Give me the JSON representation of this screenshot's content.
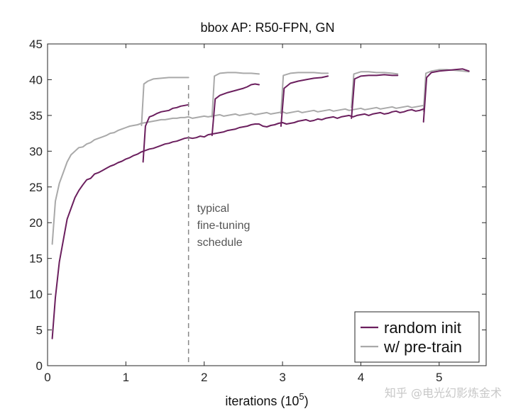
{
  "chart_data": {
    "type": "line",
    "title": "bbox AP: R50-FPN, GN",
    "xlabel": "iterations (10",
    "xlabel_exp": "5",
    "xlabel_close": ")",
    "ylabel": "",
    "xlim": [
      0,
      5.6
    ],
    "ylim": [
      0,
      45
    ],
    "xticks": [
      0,
      1,
      2,
      3,
      4,
      5
    ],
    "xtick_labels": [
      "0",
      "1",
      "2",
      "3",
      "4",
      "5"
    ],
    "yticks": [
      0,
      5,
      10,
      15,
      20,
      25,
      30,
      35,
      40,
      45
    ],
    "ytick_labels": [
      "0",
      "5",
      "10",
      "15",
      "20",
      "25",
      "30",
      "35",
      "40",
      "45"
    ],
    "grid": false,
    "legend_position": "bottom-right",
    "annotation": {
      "lines": [
        "typical",
        "fine-tuning",
        "schedule"
      ],
      "x_at": 1.8,
      "style": "dashed vertical line"
    },
    "series": [
      {
        "name": "random init",
        "color": "#6b1f5e",
        "role": "training curve",
        "points": [
          [
            0.06,
            3.8
          ],
          [
            0.1,
            9.5
          ],
          [
            0.15,
            14.5
          ],
          [
            0.2,
            17.5
          ],
          [
            0.25,
            20.5
          ],
          [
            0.3,
            22
          ],
          [
            0.35,
            23.5
          ],
          [
            0.4,
            24.5
          ],
          [
            0.45,
            25.3
          ],
          [
            0.5,
            26
          ],
          [
            0.55,
            26.2
          ],
          [
            0.6,
            26.8
          ],
          [
            0.65,
            27
          ],
          [
            0.7,
            27.3
          ],
          [
            0.75,
            27.6
          ],
          [
            0.8,
            27.9
          ],
          [
            0.85,
            28.1
          ],
          [
            0.9,
            28.4
          ],
          [
            0.95,
            28.6
          ],
          [
            1.0,
            28.9
          ],
          [
            1.05,
            29.1
          ],
          [
            1.1,
            29.4
          ],
          [
            1.15,
            29.6
          ],
          [
            1.2,
            29.9
          ],
          [
            1.25,
            30.1
          ],
          [
            1.3,
            30.3
          ],
          [
            1.35,
            30.4
          ],
          [
            1.4,
            30.6
          ],
          [
            1.45,
            30.8
          ],
          [
            1.5,
            31
          ],
          [
            1.55,
            31.1
          ],
          [
            1.6,
            31.3
          ],
          [
            1.65,
            31.4
          ],
          [
            1.7,
            31.6
          ],
          [
            1.75,
            31.8
          ],
          [
            1.8,
            31.9
          ],
          [
            1.85,
            31.8
          ],
          [
            1.9,
            31.9
          ],
          [
            1.95,
            32.1
          ],
          [
            2.0,
            32
          ],
          [
            2.05,
            32.3
          ],
          [
            2.1,
            32.4
          ],
          [
            2.15,
            32.5
          ],
          [
            2.2,
            32.6
          ],
          [
            2.25,
            32.7
          ],
          [
            2.3,
            32.9
          ],
          [
            2.35,
            33
          ],
          [
            2.4,
            33.1
          ],
          [
            2.45,
            33.3
          ],
          [
            2.5,
            33.4
          ],
          [
            2.55,
            33.5
          ],
          [
            2.6,
            33.7
          ],
          [
            2.65,
            33.8
          ],
          [
            2.7,
            33.8
          ],
          [
            2.75,
            33.5
          ],
          [
            2.8,
            33.4
          ],
          [
            2.85,
            33.6
          ],
          [
            2.9,
            33.7
          ],
          [
            2.95,
            33.9
          ],
          [
            3.0,
            34
          ],
          [
            3.05,
            33.8
          ],
          [
            3.1,
            33.9
          ],
          [
            3.15,
            34
          ],
          [
            3.2,
            34.2
          ],
          [
            3.25,
            34.3
          ],
          [
            3.3,
            34.4
          ],
          [
            3.35,
            34.2
          ],
          [
            3.4,
            34.3
          ],
          [
            3.45,
            34.5
          ],
          [
            3.5,
            34.4
          ],
          [
            3.55,
            34.6
          ],
          [
            3.6,
            34.7
          ],
          [
            3.65,
            34.8
          ],
          [
            3.7,
            34.6
          ],
          [
            3.75,
            34.8
          ],
          [
            3.8,
            34.9
          ],
          [
            3.85,
            35
          ],
          [
            3.9,
            34.8
          ],
          [
            3.95,
            35
          ],
          [
            4.0,
            35.1
          ],
          [
            4.05,
            35.2
          ],
          [
            4.1,
            35
          ],
          [
            4.15,
            35.2
          ],
          [
            4.2,
            35.3
          ],
          [
            4.25,
            35.4
          ],
          [
            4.3,
            35.2
          ],
          [
            4.35,
            35.3
          ],
          [
            4.4,
            35.5
          ],
          [
            4.45,
            35.6
          ],
          [
            4.5,
            35.4
          ],
          [
            4.55,
            35.5
          ],
          [
            4.6,
            35.7
          ],
          [
            4.65,
            35.8
          ],
          [
            4.7,
            35.6
          ],
          [
            4.75,
            35.7
          ],
          [
            4.8,
            35.9
          ]
        ]
      },
      {
        "name": "w/ pre-train",
        "color": "#a9a9a9",
        "role": "training curve",
        "points": [
          [
            0.06,
            17
          ],
          [
            0.1,
            23
          ],
          [
            0.15,
            25.5
          ],
          [
            0.2,
            27
          ],
          [
            0.25,
            28.5
          ],
          [
            0.3,
            29.5
          ],
          [
            0.35,
            30
          ],
          [
            0.4,
            30.5
          ],
          [
            0.45,
            30.6
          ],
          [
            0.5,
            31
          ],
          [
            0.55,
            31.2
          ],
          [
            0.6,
            31.6
          ],
          [
            0.65,
            31.8
          ],
          [
            0.7,
            32
          ],
          [
            0.75,
            32.2
          ],
          [
            0.8,
            32.5
          ],
          [
            0.85,
            32.6
          ],
          [
            0.9,
            32.9
          ],
          [
            0.95,
            33.1
          ],
          [
            1.0,
            33.3
          ],
          [
            1.05,
            33.5
          ],
          [
            1.1,
            33.6
          ],
          [
            1.15,
            33.7
          ],
          [
            1.2,
            33.9
          ],
          [
            1.25,
            34
          ],
          [
            1.3,
            34.1
          ],
          [
            1.35,
            34.2
          ],
          [
            1.4,
            34.3
          ],
          [
            1.45,
            34.4
          ],
          [
            1.5,
            34.4
          ],
          [
            1.55,
            34.5
          ],
          [
            1.6,
            34.6
          ],
          [
            1.65,
            34.6
          ],
          [
            1.7,
            34.7
          ],
          [
            1.75,
            34.7
          ],
          [
            1.8,
            34.8
          ],
          [
            1.85,
            34.6
          ],
          [
            1.9,
            34.7
          ],
          [
            1.95,
            34.8
          ],
          [
            2.0,
            34.9
          ],
          [
            2.05,
            34.8
          ],
          [
            2.1,
            34.9
          ],
          [
            2.15,
            35
          ],
          [
            2.2,
            35.1
          ],
          [
            2.25,
            34.9
          ],
          [
            2.3,
            35
          ],
          [
            2.35,
            35.1
          ],
          [
            2.4,
            35.2
          ],
          [
            2.45,
            35
          ],
          [
            2.5,
            35.1
          ],
          [
            2.55,
            35.2
          ],
          [
            2.6,
            35.3
          ],
          [
            2.65,
            35.1
          ],
          [
            2.7,
            35.2
          ],
          [
            2.75,
            35.3
          ],
          [
            2.8,
            35.4
          ],
          [
            2.85,
            35.2
          ],
          [
            2.9,
            35.3
          ],
          [
            2.95,
            35.4
          ],
          [
            3.0,
            35.5
          ],
          [
            3.05,
            35.3
          ],
          [
            3.1,
            35.4
          ],
          [
            3.15,
            35.5
          ],
          [
            3.2,
            35.6
          ],
          [
            3.25,
            35.4
          ],
          [
            3.3,
            35.5
          ],
          [
            3.35,
            35.6
          ],
          [
            3.4,
            35.7
          ],
          [
            3.45,
            35.5
          ],
          [
            3.5,
            35.6
          ],
          [
            3.55,
            35.7
          ],
          [
            3.6,
            35.8
          ],
          [
            3.65,
            35.6
          ],
          [
            3.7,
            35.7
          ],
          [
            3.75,
            35.8
          ],
          [
            3.8,
            35.9
          ],
          [
            3.85,
            35.7
          ],
          [
            3.9,
            35.8
          ],
          [
            3.95,
            35.9
          ],
          [
            4.0,
            36
          ],
          [
            4.05,
            35.8
          ],
          [
            4.1,
            35.9
          ],
          [
            4.15,
            36
          ],
          [
            4.2,
            36.1
          ],
          [
            4.25,
            35.9
          ],
          [
            4.3,
            36
          ],
          [
            4.35,
            36.1
          ],
          [
            4.4,
            36.2
          ],
          [
            4.45,
            36
          ],
          [
            4.5,
            36.1
          ],
          [
            4.55,
            36.2
          ],
          [
            4.6,
            36.3
          ],
          [
            4.65,
            36.1
          ],
          [
            4.7,
            36.2
          ],
          [
            4.75,
            36.3
          ],
          [
            4.8,
            36.4
          ]
        ]
      },
      {
        "name": "random init (fine-tuned branches)",
        "color": "#6b1f5e",
        "role": "lr-drop branches",
        "branches": [
          [
            [
              1.22,
              28.5
            ],
            [
              1.25,
              33.5
            ],
            [
              1.3,
              34.8
            ],
            [
              1.35,
              35
            ],
            [
              1.4,
              35.3
            ],
            [
              1.45,
              35.5
            ],
            [
              1.5,
              35.6
            ],
            [
              1.55,
              35.7
            ],
            [
              1.6,
              36
            ],
            [
              1.65,
              36.1
            ],
            [
              1.7,
              36.3
            ],
            [
              1.75,
              36.4
            ],
            [
              1.8,
              36.5
            ]
          ],
          [
            [
              2.1,
              32.2
            ],
            [
              2.14,
              37.3
            ],
            [
              2.2,
              37.8
            ],
            [
              2.3,
              38.2
            ],
            [
              2.4,
              38.5
            ],
            [
              2.5,
              38.8
            ],
            [
              2.55,
              39
            ],
            [
              2.6,
              39.3
            ],
            [
              2.65,
              39.4
            ],
            [
              2.7,
              39.3
            ]
          ],
          [
            [
              2.98,
              33.5
            ],
            [
              3.02,
              38.8
            ],
            [
              3.1,
              39.5
            ],
            [
              3.2,
              39.8
            ],
            [
              3.3,
              40
            ],
            [
              3.4,
              40.2
            ],
            [
              3.5,
              40.3
            ],
            [
              3.58,
              40.5
            ]
          ],
          [
            [
              3.88,
              34.6
            ],
            [
              3.92,
              40.1
            ],
            [
              4.0,
              40.5
            ],
            [
              4.1,
              40.6
            ],
            [
              4.2,
              40.6
            ],
            [
              4.3,
              40.7
            ],
            [
              4.4,
              40.6
            ],
            [
              4.47,
              40.6
            ]
          ],
          [
            [
              4.8,
              34.1
            ],
            [
              4.84,
              40.3
            ],
            [
              4.9,
              41
            ],
            [
              5.0,
              41.2
            ],
            [
              5.1,
              41.3
            ],
            [
              5.2,
              41.4
            ],
            [
              5.3,
              41.5
            ],
            [
              5.38,
              41.2
            ]
          ]
        ]
      },
      {
        "name": "w/ pre-train (fine-tuned branches)",
        "color": "#a9a9a9",
        "role": "lr-drop branches",
        "branches": [
          [
            [
              1.2,
              33.6
            ],
            [
              1.23,
              39.4
            ],
            [
              1.28,
              39.8
            ],
            [
              1.35,
              40.1
            ],
            [
              1.45,
              40.2
            ],
            [
              1.55,
              40.3
            ],
            [
              1.65,
              40.3
            ],
            [
              1.8,
              40.3
            ]
          ],
          [
            [
              2.1,
              34.8
            ],
            [
              2.13,
              40.5
            ],
            [
              2.2,
              40.9
            ],
            [
              2.3,
              41
            ],
            [
              2.4,
              41
            ],
            [
              2.5,
              40.9
            ],
            [
              2.6,
              40.9
            ],
            [
              2.7,
              40.8
            ]
          ],
          [
            [
              2.98,
              35.3
            ],
            [
              3.01,
              40.6
            ],
            [
              3.1,
              40.9
            ],
            [
              3.2,
              41
            ],
            [
              3.3,
              41
            ],
            [
              3.4,
              41
            ],
            [
              3.5,
              40.9
            ],
            [
              3.58,
              40.9
            ]
          ],
          [
            [
              3.88,
              36.1
            ],
            [
              3.91,
              40.8
            ],
            [
              4.0,
              41.1
            ],
            [
              4.1,
              41.1
            ],
            [
              4.2,
              41
            ],
            [
              4.3,
              41
            ],
            [
              4.4,
              40.9
            ],
            [
              4.47,
              40.8
            ]
          ],
          [
            [
              4.8,
              35.6
            ],
            [
              4.83,
              40.9
            ],
            [
              4.9,
              41.2
            ],
            [
              5.0,
              41.4
            ],
            [
              5.1,
              41.4
            ],
            [
              5.2,
              41.3
            ],
            [
              5.3,
              41.2
            ],
            [
              5.38,
              41.1
            ]
          ]
        ]
      }
    ]
  },
  "legend": {
    "items": [
      {
        "label": "random init",
        "color": "#6b1f5e"
      },
      {
        "label": "w/ pre-train",
        "color": "#a9a9a9"
      }
    ]
  },
  "watermark": {
    "text": "知乎 @电光幻影炼金术"
  }
}
